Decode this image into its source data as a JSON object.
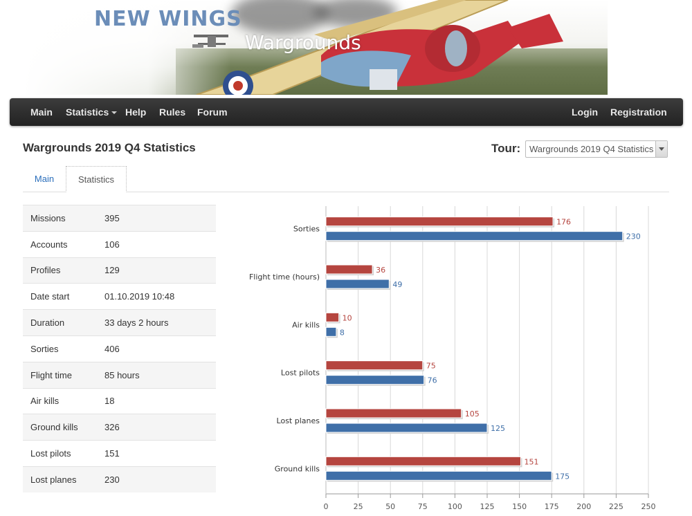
{
  "banner": {
    "title": "NEW WINGS",
    "subtitle": "Wargrounds"
  },
  "nav": {
    "left": [
      "Main",
      "Statistics",
      "Help",
      "Rules",
      "Forum"
    ],
    "right": [
      "Login",
      "Registration"
    ]
  },
  "page": {
    "title": "Wargrounds 2019 Q4 Statistics"
  },
  "tour": {
    "label": "Tour:",
    "selected": "Wargrounds 2019 Q4 Statistics"
  },
  "tabs": [
    "Main",
    "Statistics"
  ],
  "stats": [
    {
      "label": "Missions",
      "value": "395"
    },
    {
      "label": "Accounts",
      "value": "106"
    },
    {
      "label": "Profiles",
      "value": "129"
    },
    {
      "label": "Date start",
      "value": "01.10.2019 10:48"
    },
    {
      "label": "Duration",
      "value": "33 days 2 hours"
    },
    {
      "label": "Sorties",
      "value": "406"
    },
    {
      "label": "Flight time",
      "value": "85 hours"
    },
    {
      "label": "Air kills",
      "value": "18"
    },
    {
      "label": "Ground kills",
      "value": "326"
    },
    {
      "label": "Lost pilots",
      "value": "151"
    },
    {
      "label": "Lost planes",
      "value": "230"
    }
  ],
  "chart_data": {
    "type": "bar",
    "orientation": "horizontal",
    "categories": [
      "Sorties",
      "Flight time (hours)",
      "Air kills",
      "Lost pilots",
      "Lost planes",
      "Ground kills"
    ],
    "series": [
      {
        "values": [
          176,
          36,
          10,
          75,
          105,
          151
        ],
        "color": "#b5453f"
      },
      {
        "values": [
          230,
          49,
          8,
          76,
          125,
          175
        ],
        "color": "#3f6fa8"
      }
    ],
    "xlim": [
      0,
      250
    ],
    "xticks": [
      0,
      25,
      50,
      75,
      100,
      125,
      150,
      175,
      200,
      225,
      250
    ],
    "grid": "vertical"
  }
}
